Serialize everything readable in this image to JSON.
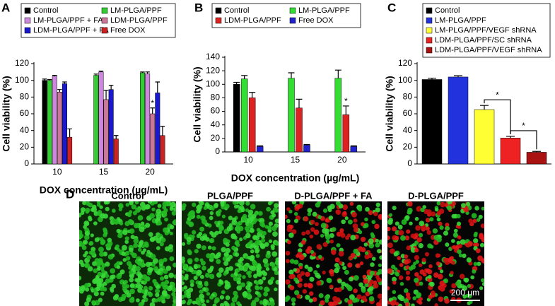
{
  "chart_data": [
    {
      "type": "bar",
      "label": "A",
      "ylabel": "Cell viability (%)",
      "xlabel": "DOX concentration (µg/mL)",
      "categories": [
        "10",
        "15",
        "20"
      ],
      "ylim": [
        0,
        120
      ],
      "yticks": [
        0,
        20,
        40,
        60,
        80,
        100,
        120
      ],
      "series": [
        {
          "name": "Control",
          "color": "#000000",
          "values": [
            100,
            null,
            null
          ],
          "errors": [
            1.5,
            null,
            null
          ]
        },
        {
          "name": "LM-PLGA/PPF",
          "color": "#33cc33",
          "values": [
            100,
            106,
            109
          ],
          "errors": [
            1,
            1.5,
            1
          ]
        },
        {
          "name": "LM-PLGA/PPF + FA",
          "color": "#cc88dd",
          "values": [
            105,
            110,
            108
          ],
          "errors": [
            1,
            1,
            2
          ]
        },
        {
          "name": "LDM-PLGA/PPF",
          "color": "#cc7799",
          "values": [
            86,
            77,
            60
          ],
          "errors": [
            3,
            11,
            7
          ]
        },
        {
          "name": "LDM-PLGA/PPF + FA",
          "color": "#1a1acc",
          "values": [
            96,
            89,
            85
          ],
          "errors": [
            2,
            5,
            13
          ]
        },
        {
          "name": "Free DOX",
          "color": "#cc2222",
          "values": [
            32,
            30,
            34
          ],
          "errors": [
            10,
            4,
            11
          ]
        }
      ],
      "annotations": [
        {
          "text": "*",
          "series": "LDM-PLGA/PPF",
          "category": "20"
        }
      ]
    },
    {
      "type": "bar",
      "label": "B",
      "ylabel": "Cell viability (%)",
      "xlabel": "DOX concentration (µg/mL)",
      "categories": [
        "10",
        "15",
        "20"
      ],
      "ylim": [
        0,
        140
      ],
      "yticks": [
        0,
        20,
        40,
        60,
        80,
        100,
        120,
        140
      ],
      "series": [
        {
          "name": "Control",
          "color": "#000000",
          "values": [
            100,
            null,
            null
          ],
          "errors": [
            3,
            null,
            null
          ]
        },
        {
          "name": "LM-PLGA/PPF",
          "color": "#33dd33",
          "values": [
            108,
            109,
            109
          ],
          "errors": [
            5,
            8,
            12
          ]
        },
        {
          "name": "LDM-PLGA/PPF",
          "color": "#dd2222",
          "values": [
            80,
            65,
            55
          ],
          "errors": [
            8,
            13,
            13
          ]
        },
        {
          "name": "Free DOX",
          "color": "#2222cc",
          "values": [
            8,
            10,
            8
          ],
          "errors": [
            1,
            1,
            1
          ]
        }
      ],
      "annotations": [
        {
          "text": "*",
          "series": "LDM-PLGA/PPF",
          "category": "20"
        }
      ]
    },
    {
      "type": "bar",
      "label": "C",
      "ylabel": "Cell viability (%)",
      "categories": [
        null
      ],
      "ylim": [
        0,
        120
      ],
      "yticks": [
        0,
        20,
        40,
        60,
        80,
        100,
        120
      ],
      "series": [
        {
          "name": "Control",
          "color": "#000000",
          "values": [
            101
          ],
          "errors": [
            1.5
          ]
        },
        {
          "name": "LM-PLGA/PPF",
          "color": "#2233dd",
          "values": [
            104
          ],
          "errors": [
            1.5
          ]
        },
        {
          "name": "LM-PLGA/PPF/VEGF shRNA",
          "color": "#ffff33",
          "values": [
            65
          ],
          "errors": [
            5
          ]
        },
        {
          "name": "LDM-PLGA/PPF/SC shRNA",
          "color": "#ee2222",
          "values": [
            31
          ],
          "errors": [
            2
          ]
        },
        {
          "name": "LDM-PLGA/PPF/VEGF shRNA",
          "color": "#aa1111",
          "values": [
            14
          ],
          "errors": [
            1
          ]
        }
      ],
      "brackets": [
        {
          "text": "*",
          "from": "LM-PLGA/PPF/VEGF shRNA",
          "to": "LDM-PLGA/PPF/SC shRNA"
        },
        {
          "text": "*",
          "from": "LDM-PLGA/PPF/SC shRNA",
          "to": "LDM-PLGA/PPF/VEGF shRNA"
        }
      ]
    }
  ],
  "images": {
    "label": "D",
    "panels": [
      "Control",
      "PLGA/PPF",
      "D-PLGA/PPF + FA",
      "D-PLGA/PPF"
    ],
    "scale_bar": "200 µm"
  }
}
